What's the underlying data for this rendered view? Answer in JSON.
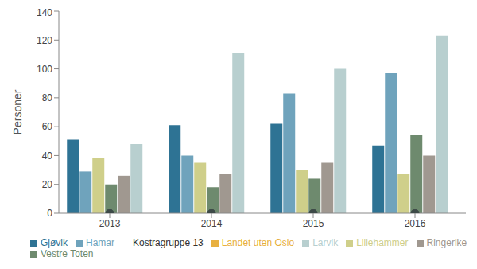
{
  "chart_data": {
    "type": "bar",
    "y_label": "Personer",
    "categories": [
      "2013",
      "2014",
      "2015",
      "2016"
    ],
    "series": [
      {
        "name": "Gjøvik",
        "color": "#2e7394",
        "values": [
          51,
          61,
          62,
          47
        ]
      },
      {
        "name": "Hamar",
        "color": "#6fa3bc",
        "values": [
          29,
          40,
          83,
          97
        ]
      },
      {
        "name": "Lillehammer",
        "color": "#cfcf8a",
        "values": [
          38,
          35,
          30,
          27
        ]
      },
      {
        "name": "Vestre Toten",
        "color": "#6e8a6e",
        "values": [
          20,
          18,
          24,
          54
        ]
      },
      {
        "name": "Ringerike",
        "color": "#a09890",
        "values": [
          26,
          27,
          35,
          40
        ]
      },
      {
        "name": "Larvik",
        "color": "#b8cfcf",
        "values": [
          48,
          111,
          100,
          123
        ]
      },
      {
        "name": "Landet uten Oslo",
        "color": "#e8b040",
        "values": [
          0,
          0,
          0,
          0
        ]
      },
      {
        "name": "Kostragruppe 13",
        "color": "#3d4a48",
        "type": "line",
        "marker": "circle",
        "line_style": "none",
        "values": [
          0,
          0,
          0,
          0
        ]
      }
    ],
    "ylim": [
      0,
      140
    ],
    "yticks": [
      0,
      20,
      40,
      60,
      80,
      100,
      120,
      140
    ],
    "grid": false,
    "legend": "bottom-left"
  }
}
